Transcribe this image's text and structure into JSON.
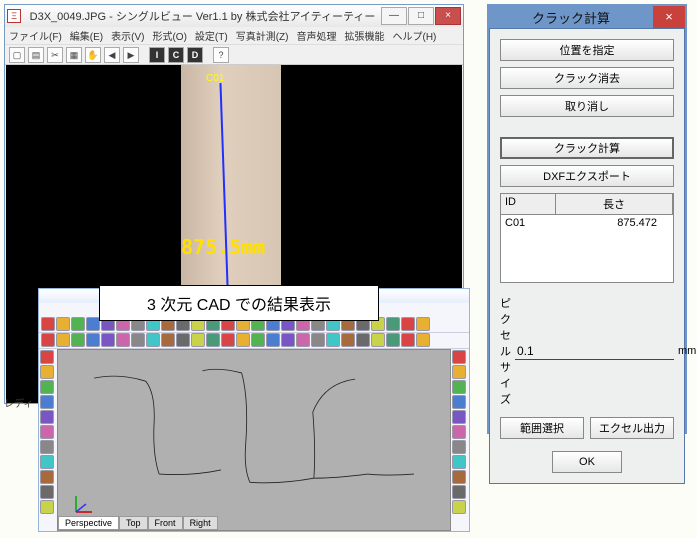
{
  "main_window": {
    "title": "D3X_0049.JPG - シングルビュー Ver1.1 by 株式会社アイティーティー",
    "menus": [
      "ファイル(F)",
      "編集(E)",
      "表示(V)",
      "形式(O)",
      "設定(T)",
      "写真計測(Z)",
      "音声処理",
      "拡張機能",
      "ヘルプ(H)"
    ],
    "status": "レディ",
    "crack_label": "C01",
    "measurement": "875.5mm"
  },
  "crack_dialog": {
    "title": "クラック計算",
    "btn_specify": "位置を指定",
    "btn_erase": "クラック消去",
    "btn_undo": "取り消し",
    "btn_calc": "クラック計算",
    "btn_dxf": "DXFエクスポート",
    "col_id": "ID",
    "col_len": "長さ",
    "row_id": "C01",
    "row_len": "875.472",
    "px_label": "ピクセルサイズ",
    "px_value": "0.1",
    "px_unit": "mm",
    "btn_range": "範囲選択",
    "btn_excel": "エクセル出力",
    "btn_ok": "OK"
  },
  "cad": {
    "overlay": "3 次元 CAD での結果表示",
    "tabs": [
      "Perspective",
      "Top",
      "Front",
      "Right"
    ],
    "colors": [
      "#d94444",
      "#e8b030",
      "#53b353",
      "#4b7ed1",
      "#7a55c4",
      "#cc66aa",
      "#888",
      "#40c6c6",
      "#a66a3c",
      "#6a6a6a",
      "#c8d24a",
      "#4a9a7a"
    ]
  }
}
